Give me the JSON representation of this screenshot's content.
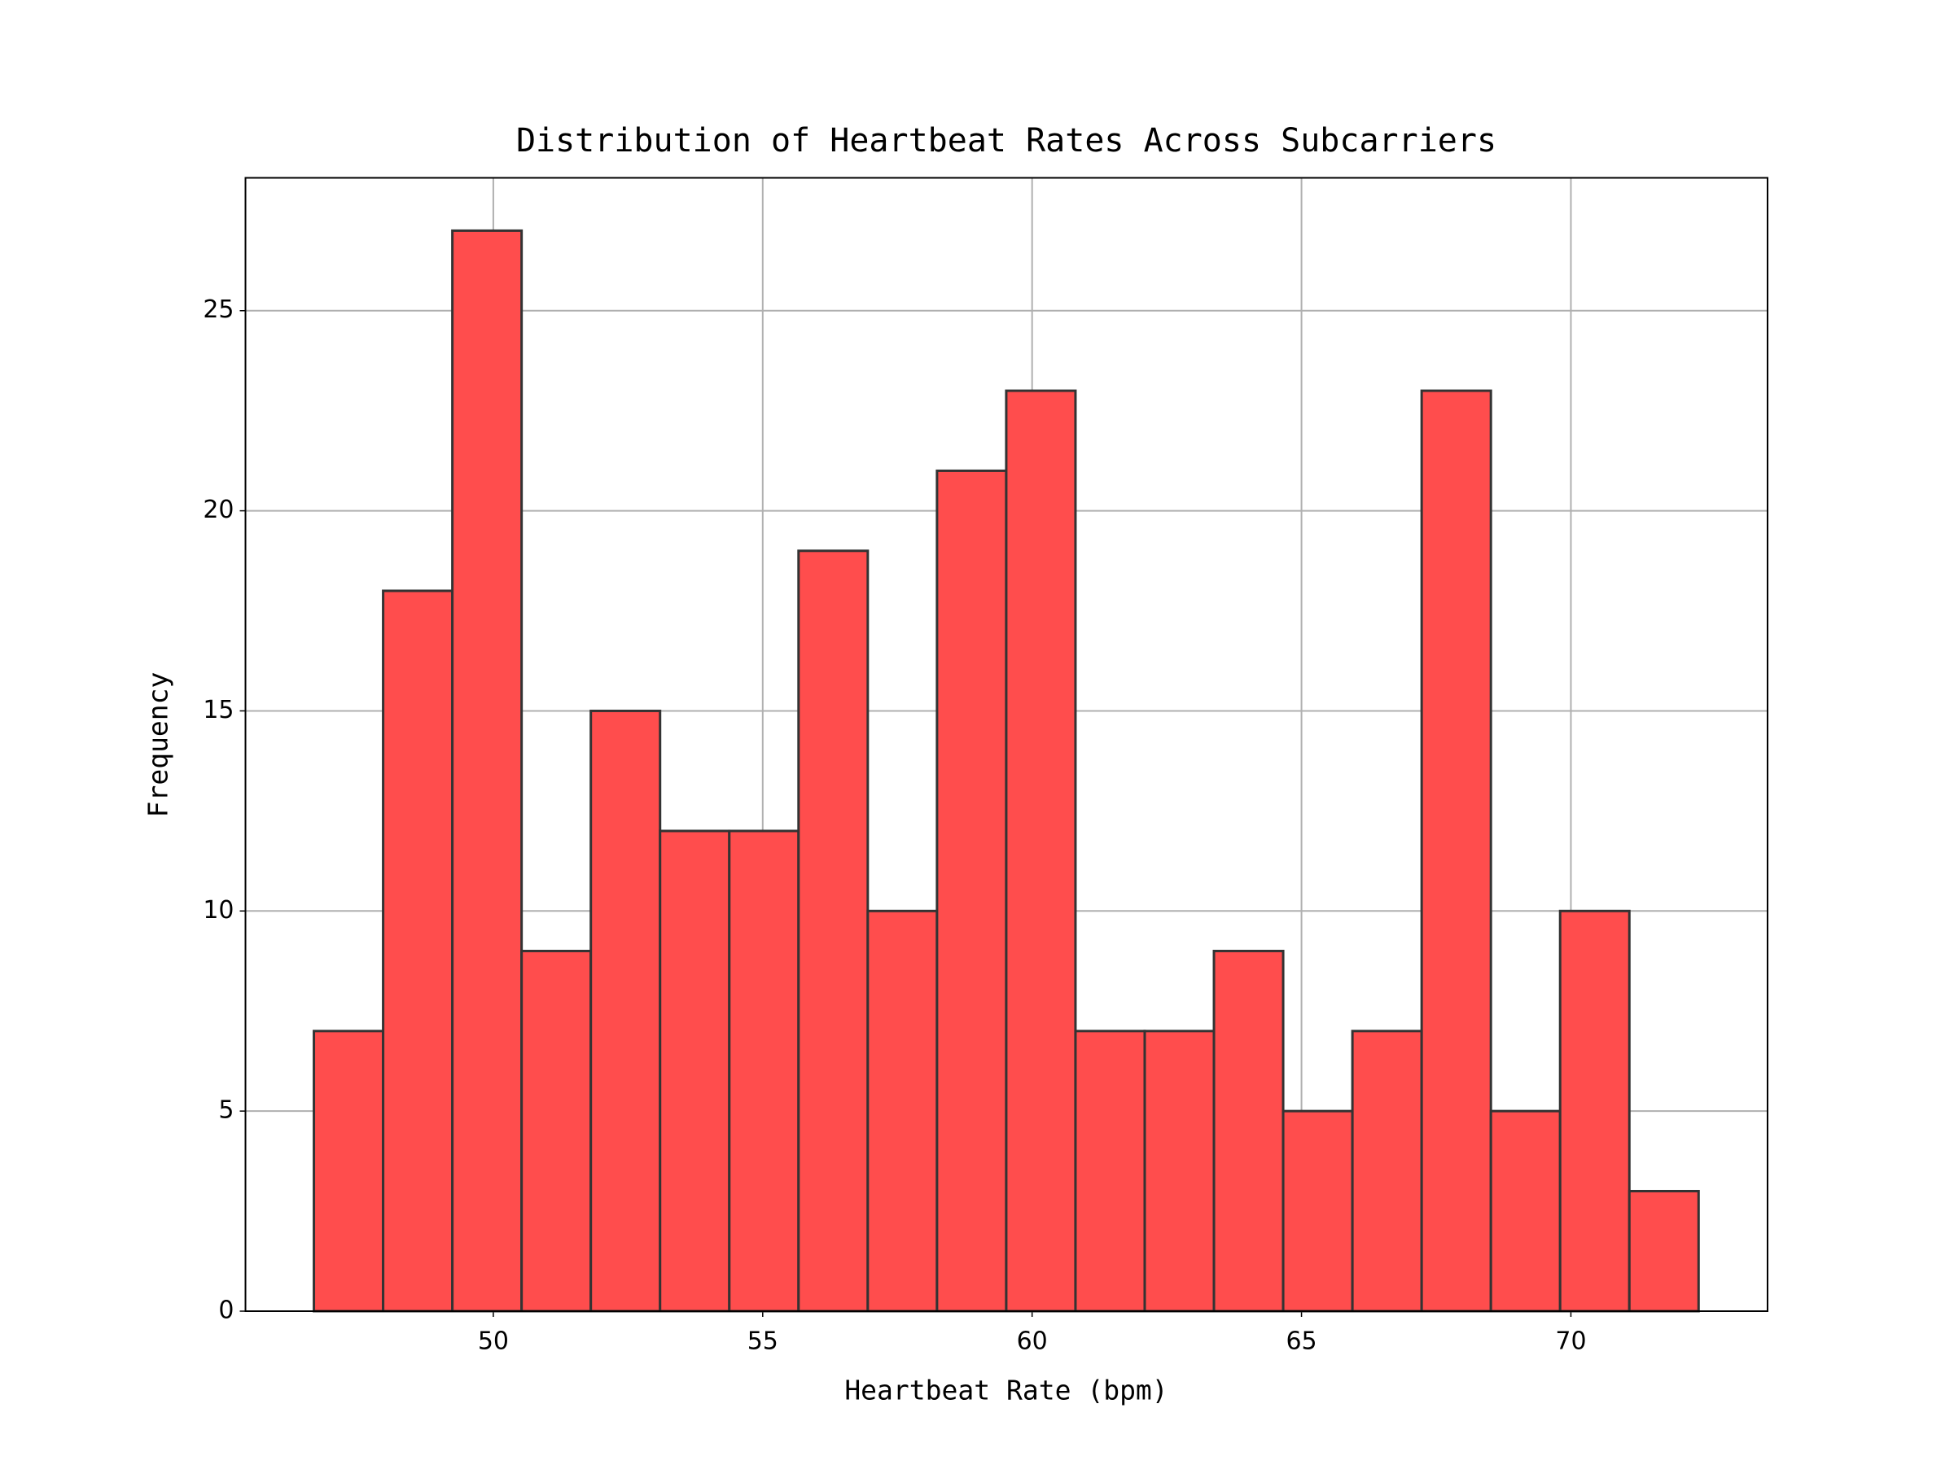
{
  "chart_data": {
    "type": "histogram",
    "title": "Distribution of Heartbeat Rates Across Subcarriers",
    "xlabel": "Heartbeat Rate (bpm)",
    "ylabel": "Frequency",
    "bins": [
      46.67,
      47.955,
      49.24,
      50.525,
      51.81,
      53.095,
      54.38,
      55.665,
      56.95,
      58.235,
      59.52,
      60.805,
      62.09,
      63.375,
      64.66,
      65.945,
      67.23,
      68.515,
      69.8,
      71.085,
      72.37
    ],
    "values": [
      7,
      18,
      27,
      9,
      15,
      12,
      12,
      19,
      10,
      21,
      23,
      7,
      7,
      9,
      5,
      7,
      23,
      5,
      10,
      3
    ],
    "color": "#ff4d4d",
    "edgecolor": "#333333",
    "xlim": [
      45.4,
      73.65
    ],
    "xticks": [
      50,
      55,
      60,
      65,
      70
    ],
    "ylim": [
      0,
      28.32
    ],
    "yticks": [
      0,
      5,
      10,
      15,
      20,
      25
    ],
    "grid": true
  }
}
